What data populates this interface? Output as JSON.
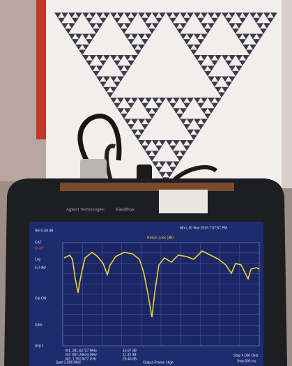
{
  "device": {
    "brand": "Agilent Technologies",
    "model": "FieldFox"
  },
  "screen": {
    "reference": "Ref 0.00 dB",
    "timestamp": "Mon, 30 Nov 2015 7:07:57 PM",
    "trace_title": "Return Loss (dB)",
    "side_labels": [
      "CAT",
      "Scale",
      "Log",
      "5.0 dB/",
      "Cal ON",
      "Data",
      "Avg 1"
    ],
    "markers": [
      [
        "M1: 281.62737 MHz",
        "15.87 dB"
      ],
      [
        "M2: 801.28624 MHz",
        "11.32 dB"
      ],
      [
        "M3: 1.7613677 GHz",
        "26.40 dB"
      ]
    ],
    "footer": [
      "Start 2.000 MHz",
      "Output Power: High",
      "Stop 4.000 GHz",
      "Swp 800 ms"
    ]
  }
}
